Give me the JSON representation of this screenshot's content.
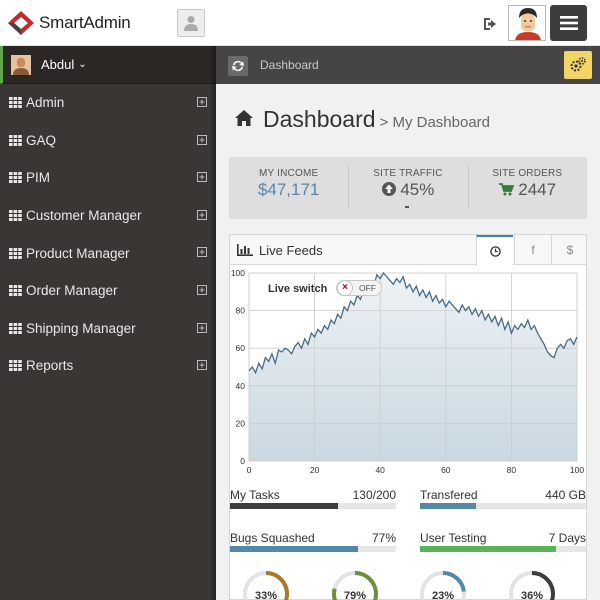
{
  "header": {
    "logo_text": "SmartAdmin"
  },
  "sidebar": {
    "user_name": "Abdul",
    "items": [
      {
        "label": "Admin"
      },
      {
        "label": "GAQ"
      },
      {
        "label": "PIM"
      },
      {
        "label": "Customer Manager"
      },
      {
        "label": "Product Manager"
      },
      {
        "label": "Order Manager"
      },
      {
        "label": "Shipping Manager"
      },
      {
        "label": "Reports"
      }
    ]
  },
  "ribbon": {
    "breadcrumb": "Dashboard"
  },
  "page": {
    "title": "Dashboard",
    "subtitle": "> My Dashboard"
  },
  "stats": {
    "income_label": "MY INCOME",
    "income_value": "$47,171",
    "traffic_label": "SITE TRAFFIC",
    "traffic_value": "45%",
    "orders_label": "SITE ORDERS",
    "orders_value": "2447"
  },
  "widget": {
    "title": "Live Feeds",
    "tabs": [
      "clock",
      "f",
      "$"
    ],
    "live_switch_label": "Live switch",
    "switch_state": "OFF"
  },
  "chart_data": {
    "type": "area",
    "xlim": [
      0,
      100
    ],
    "ylim": [
      0,
      100
    ],
    "xticks": [
      "0",
      "20",
      "40",
      "60",
      "80",
      "100"
    ],
    "yticks": [
      "0",
      "20",
      "40",
      "60",
      "80",
      "100"
    ],
    "x": [
      0,
      1,
      2,
      3,
      4,
      5,
      6,
      7,
      8,
      9,
      10,
      11,
      12,
      13,
      14,
      15,
      16,
      17,
      18,
      19,
      20,
      21,
      22,
      23,
      24,
      25,
      26,
      27,
      28,
      29,
      30,
      31,
      32,
      33,
      34,
      35,
      36,
      37,
      38,
      39,
      40,
      41,
      42,
      43,
      44,
      45,
      46,
      47,
      48,
      49,
      50,
      51,
      52,
      53,
      54,
      55,
      56,
      57,
      58,
      59,
      60,
      61,
      62,
      63,
      64,
      65,
      66,
      67,
      68,
      69,
      70,
      71,
      72,
      73,
      74,
      75,
      76,
      77,
      78,
      79,
      80,
      81,
      82,
      83,
      84,
      85,
      86,
      87,
      88,
      89,
      90,
      91,
      92,
      93,
      94,
      95,
      96,
      97,
      98,
      99,
      100
    ],
    "y": [
      48,
      50,
      47,
      52,
      49,
      55,
      53,
      57,
      52,
      59,
      58,
      60,
      59,
      57,
      61,
      63,
      60,
      65,
      62,
      68,
      66,
      70,
      68,
      72,
      70,
      75,
      73,
      78,
      76,
      82,
      80,
      85,
      83,
      88,
      86,
      92,
      90,
      95,
      93,
      99,
      97,
      100,
      98,
      96,
      94,
      97,
      95,
      98,
      92,
      94,
      90,
      93,
      88,
      91,
      87,
      90,
      85,
      88,
      84,
      86,
      82,
      85,
      83,
      81,
      79,
      83,
      80,
      82,
      78,
      81,
      77,
      80,
      75,
      78,
      74,
      77,
      72,
      76,
      70,
      74,
      68,
      72,
      70,
      73,
      71,
      75,
      70,
      72,
      68,
      65,
      62,
      58,
      56,
      55,
      60,
      62,
      60,
      64,
      65,
      62,
      66
    ]
  },
  "progress": [
    {
      "label": "My Tasks",
      "value": "130/200",
      "fraction": 0.65,
      "color": "#3e3e3e"
    },
    {
      "label": "Transfered",
      "value": "440 GB",
      "fraction": 0.34,
      "color": "#5488a7"
    },
    {
      "label": "Bugs Squashed",
      "value": "77%",
      "fraction": 0.77,
      "color": "#5488a7"
    },
    {
      "label": "User Testing",
      "value": "7 Days",
      "fraction": 0.82,
      "color": "#56b45b"
    }
  ],
  "donuts": [
    {
      "value": "33%",
      "fraction": 0.33,
      "color": "#a87a2b"
    },
    {
      "value": "79%",
      "fraction": 0.79,
      "color": "#708f3c"
    },
    {
      "value": "23%",
      "fraction": 0.23,
      "color": "#5488a7"
    },
    {
      "value": "36%",
      "fraction": 0.36,
      "color": "#3c3c3c"
    }
  ],
  "colors": {
    "sidebar_bg": "#3a3633",
    "accent_green": "#5ea84b",
    "accent_blue": "#5b84a8"
  }
}
